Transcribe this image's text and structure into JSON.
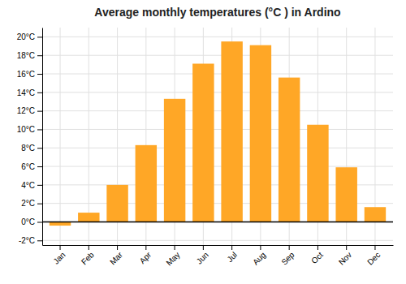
{
  "chart_data": {
    "type": "bar",
    "title": "Average monthly temperatures (°C ) in Ardino",
    "categories": [
      "Jan",
      "Feb",
      "Mar",
      "Apr",
      "May",
      "Jun",
      "Jul",
      "Aug",
      "Sep",
      "Oct",
      "Nov",
      "Dec"
    ],
    "values": [
      -0.4,
      1.0,
      4.0,
      8.3,
      13.3,
      17.1,
      19.5,
      19.1,
      15.6,
      10.5,
      5.9,
      1.6
    ],
    "color": "#FFA726",
    "ylim": [
      -2.5,
      21
    ],
    "yticks": [
      {
        "value": -2,
        "label": "-2°C"
      },
      {
        "value": 0,
        "label": "0°C"
      },
      {
        "value": 2,
        "label": "2°C"
      },
      {
        "value": 4,
        "label": "4°C"
      },
      {
        "value": 6,
        "label": "6°C"
      },
      {
        "value": 8,
        "label": "8°C"
      },
      {
        "value": 10,
        "label": "10°C"
      },
      {
        "value": 12,
        "label": "12°C"
      },
      {
        "value": 14,
        "label": "14°C"
      },
      {
        "value": 16,
        "label": "16°C"
      },
      {
        "value": 18,
        "label": "18°C"
      },
      {
        "value": 20,
        "label": "20°C"
      }
    ],
    "grid": true
  }
}
